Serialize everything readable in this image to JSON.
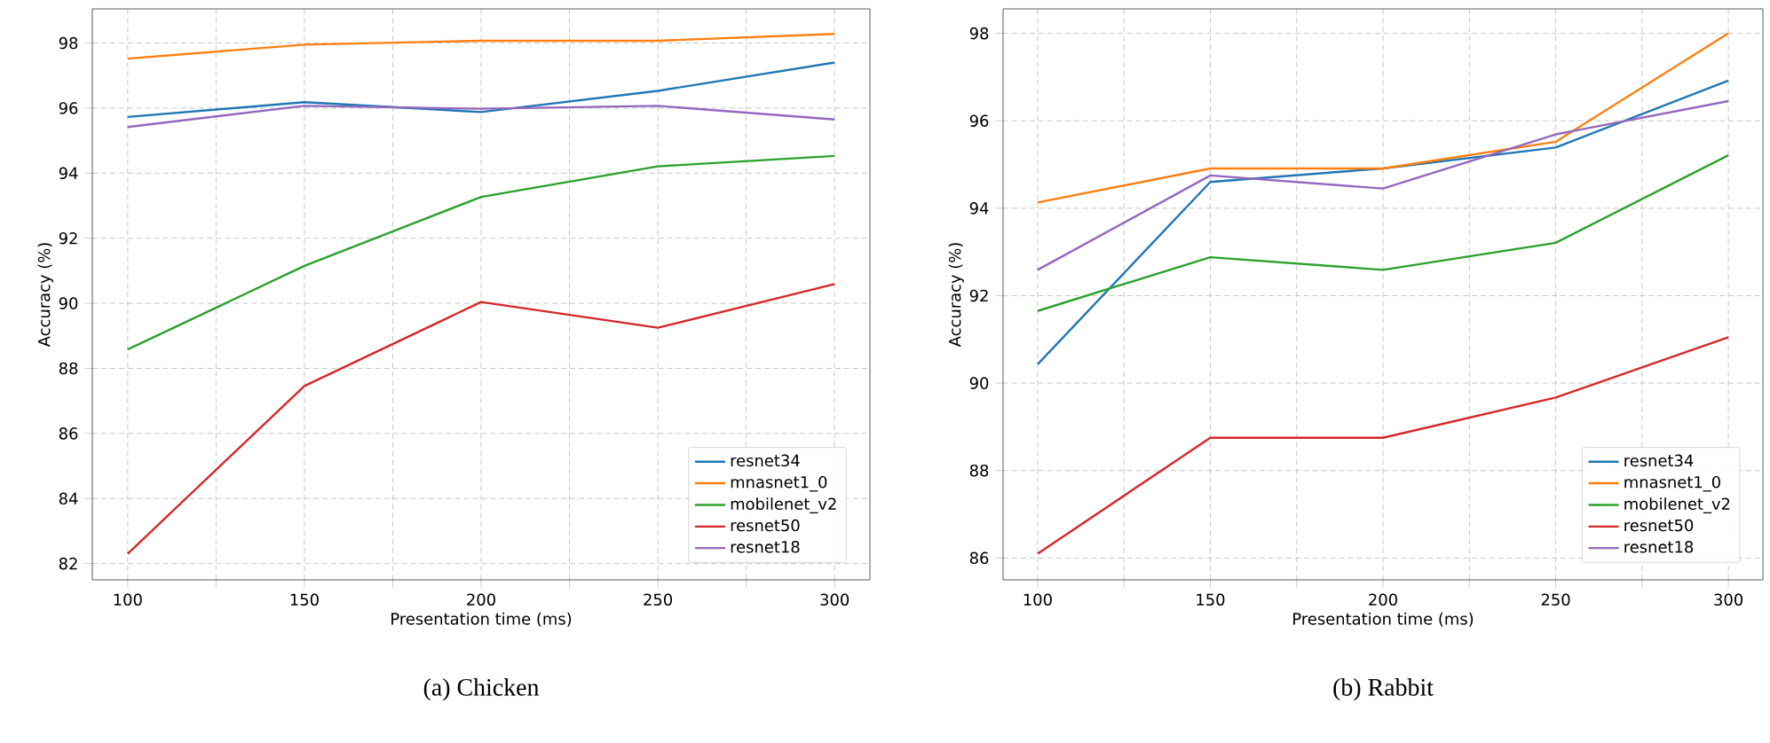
{
  "chart_data": [
    {
      "type": "line",
      "title": "(a) Chicken",
      "xlabel": "Presentation time (ms)",
      "ylabel": "Accuracy (%)",
      "x": [
        100,
        150,
        200,
        250,
        300
      ],
      "series": [
        {
          "name": "resnet34",
          "color": "#1f77b4",
          "values": [
            95.73,
            96.18,
            95.88,
            96.53,
            97.4
          ]
        },
        {
          "name": "mnasnet1_0",
          "color": "#ff7f0e",
          "values": [
            97.52,
            97.95,
            98.07,
            98.07,
            98.28
          ]
        },
        {
          "name": "mobilenet_v2",
          "color": "#2ca02c",
          "values": [
            88.58,
            91.15,
            93.27,
            94.21,
            94.53
          ]
        },
        {
          "name": "resnet50",
          "color": "#d62728",
          "values": [
            82.3,
            87.46,
            90.04,
            89.25,
            90.59
          ]
        },
        {
          "name": "resnet18",
          "color": "#9467bd",
          "values": [
            95.42,
            96.07,
            95.98,
            96.07,
            95.65
          ]
        }
      ],
      "xlim": [
        90,
        310
      ],
      "ylim": [
        81.5,
        99.05
      ],
      "xticks": [
        100,
        {
          "value": 125,
          "label": null
        },
        150,
        {
          "value": 175,
          "label": null
        },
        200,
        {
          "value": 225,
          "label": null
        },
        250,
        {
          "value": 275,
          "label": null
        },
        300
      ],
      "yticks": [
        82,
        84,
        86,
        88,
        90,
        92,
        94,
        96,
        98
      ],
      "grid": true,
      "legend": "bottom right"
    },
    {
      "type": "line",
      "title": "(b) Rabbit",
      "xlabel": "Presentation time (ms)",
      "ylabel": "Accuracy (%)",
      "x": [
        100,
        150,
        200,
        250,
        300
      ],
      "series": [
        {
          "name": "resnet34",
          "color": "#1f77b4",
          "values": [
            90.43,
            94.6,
            94.91,
            95.39,
            96.92
          ]
        },
        {
          "name": "mnasnet1_0",
          "color": "#ff7f0e",
          "values": [
            94.13,
            94.91,
            94.91,
            95.52,
            98.0
          ]
        },
        {
          "name": "mobilenet_v2",
          "color": "#2ca02c",
          "values": [
            91.65,
            92.88,
            92.59,
            93.21,
            95.21
          ]
        },
        {
          "name": "resnet50",
          "color": "#d62728",
          "values": [
            86.1,
            88.75,
            88.75,
            89.67,
            91.05
          ]
        },
        {
          "name": "resnet18",
          "color": "#9467bd",
          "values": [
            92.59,
            94.75,
            94.45,
            95.69,
            96.45
          ]
        }
      ],
      "xlim": [
        90,
        310
      ],
      "ylim": [
        85.5,
        98.56
      ],
      "xticks": [
        100,
        {
          "value": 125,
          "label": null
        },
        150,
        {
          "value": 175,
          "label": null
        },
        200,
        {
          "value": 225,
          "label": null
        },
        250,
        {
          "value": 275,
          "label": null
        },
        300
      ],
      "yticks": [
        86,
        88,
        90,
        92,
        94,
        96,
        98
      ],
      "grid": true,
      "legend": "bottom right"
    }
  ]
}
